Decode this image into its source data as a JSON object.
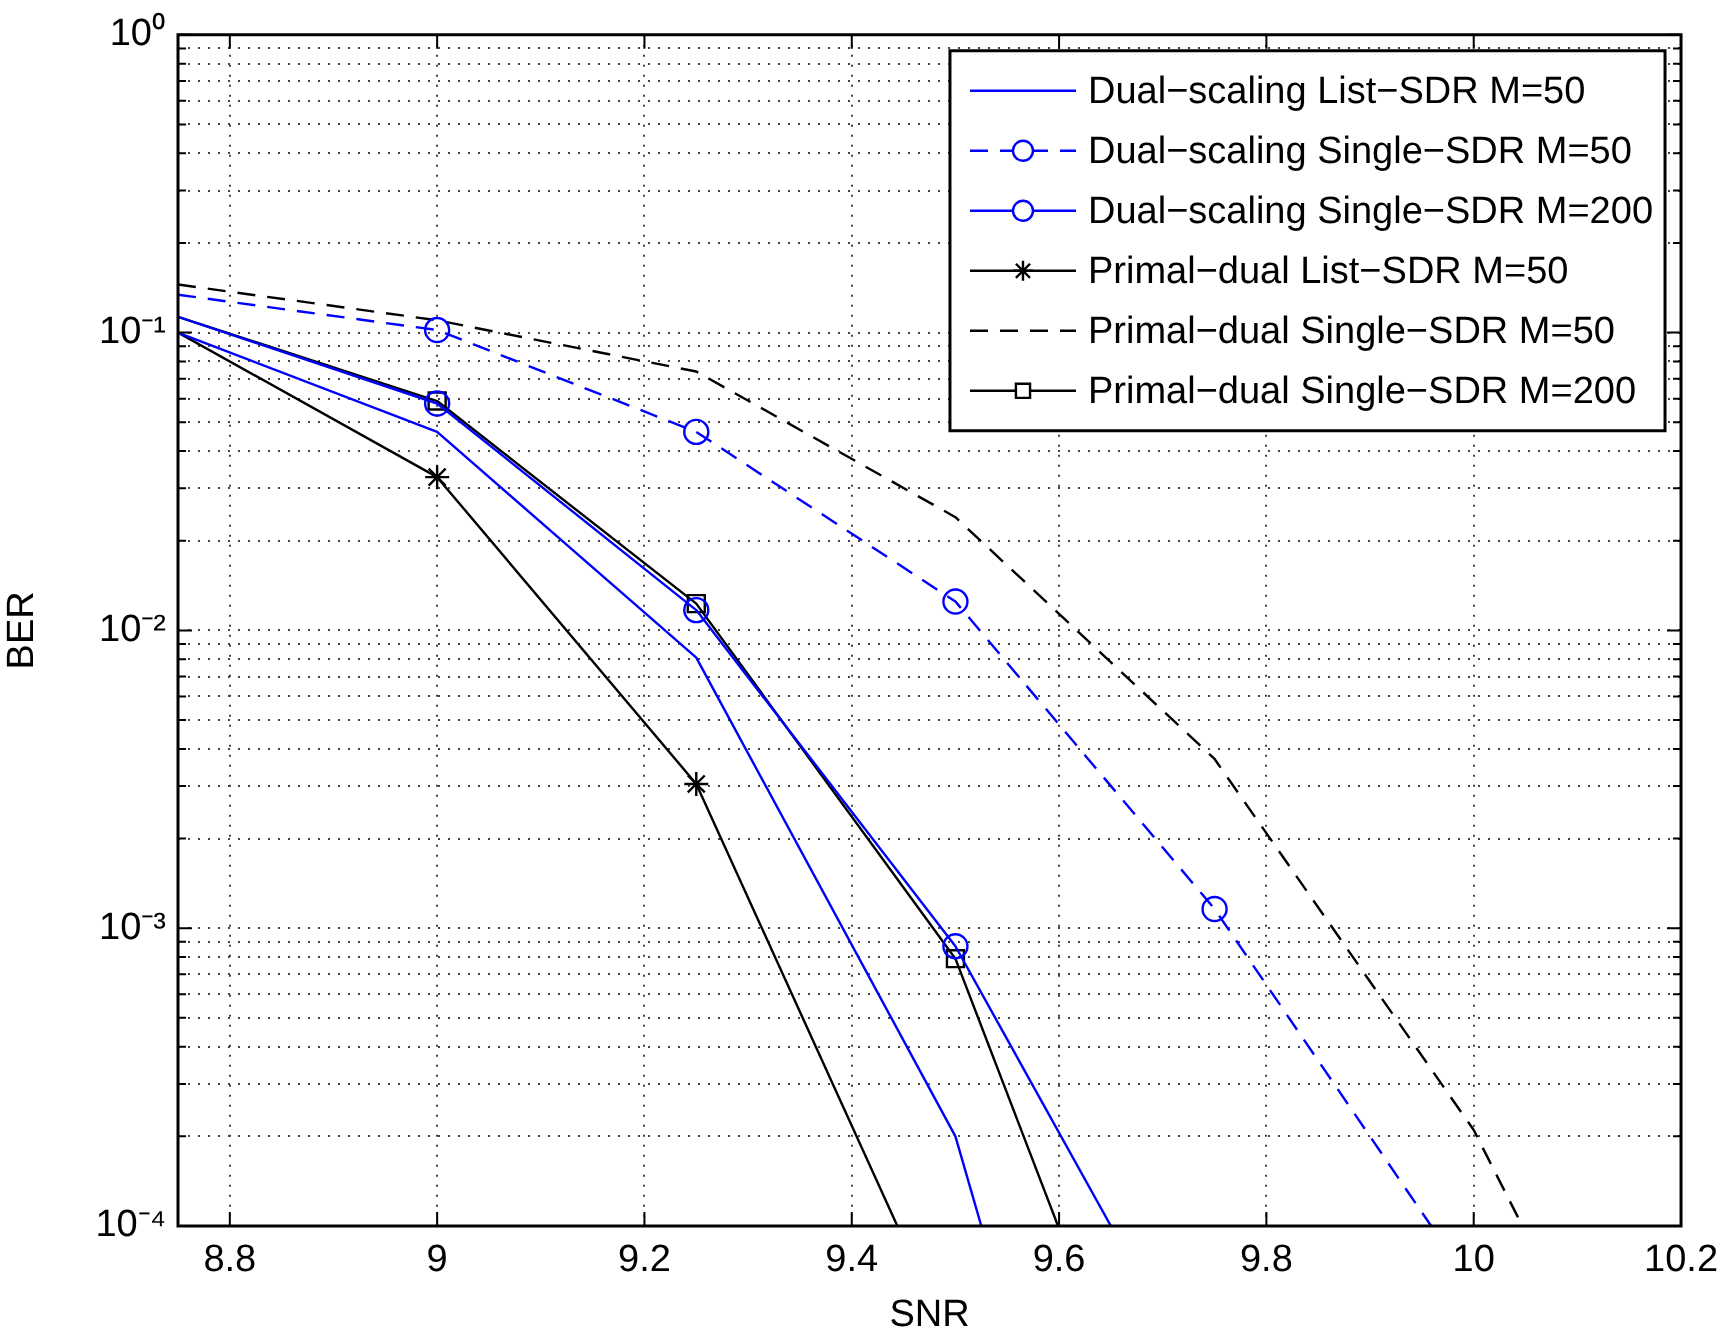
{
  "chart_data": {
    "type": "line",
    "xlabel": "SNR",
    "ylabel": "BER",
    "log": "y",
    "grid": true,
    "legend": "top right",
    "xlim": [
      8.75,
      10.2
    ],
    "xticks": [
      8.8,
      9,
      9.2,
      9.4,
      9.6,
      9.8,
      10,
      10.2
    ],
    "ylim": [
      0.0001,
      1
    ],
    "yticks": [
      {
        "value": 0.0001,
        "label": "10⁻⁴"
      },
      {
        "value": 0.0002,
        "label": null
      },
      {
        "value": 0.0003,
        "label": null
      },
      {
        "value": 0.0004,
        "label": null
      },
      {
        "value": 0.0005,
        "label": null
      },
      {
        "value": 0.0006,
        "label": null
      },
      {
        "value": 0.0007,
        "label": null
      },
      {
        "value": 0.0008,
        "label": null
      },
      {
        "value": 0.0009,
        "label": null
      },
      {
        "value": 0.001,
        "label": "10⁻³"
      },
      {
        "value": 0.002,
        "label": null
      },
      {
        "value": 0.003,
        "label": null
      },
      {
        "value": 0.004,
        "label": null
      },
      {
        "value": 0.005,
        "label": null
      },
      {
        "value": 0.006,
        "label": null
      },
      {
        "value": 0.007,
        "label": null
      },
      {
        "value": 0.008,
        "label": null
      },
      {
        "value": 0.009,
        "label": null
      },
      {
        "value": 0.01,
        "label": "10⁻²"
      },
      {
        "value": 0.02,
        "label": null
      },
      {
        "value": 0.03,
        "label": null
      },
      {
        "value": 0.04,
        "label": null
      },
      {
        "value": 0.05,
        "label": null
      },
      {
        "value": 0.06,
        "label": null
      },
      {
        "value": 0.07,
        "label": null
      },
      {
        "value": 0.08,
        "label": null
      },
      {
        "value": 0.09,
        "label": null
      },
      {
        "value": 0.1,
        "label": "10⁻¹"
      },
      {
        "value": 0.2,
        "label": null
      },
      {
        "value": 0.3,
        "label": null
      },
      {
        "value": 0.4,
        "label": null
      },
      {
        "value": 0.5,
        "label": null
      },
      {
        "value": 0.6,
        "label": null
      },
      {
        "value": 0.7,
        "label": null
      },
      {
        "value": 0.8,
        "label": null
      },
      {
        "value": 0.9,
        "label": null
      },
      {
        "value": 1,
        "label": "10⁰"
      }
    ],
    "series": [
      {
        "name": "Dual−scaling List−SDR M=50",
        "color": "#0000ff",
        "marker": "none",
        "line_style": "solid",
        "x": [
          8.75,
          9,
          9.25,
          9.5,
          9.525
        ],
        "values": [
          0.1,
          0.0464,
          0.0081,
          0.0002,
          0.0001
        ]
      },
      {
        "name": "Dual−scaling Single−SDR M=50",
        "color": "#0000ff",
        "marker": "circle",
        "line_style": "dashed",
        "x": [
          8.75,
          9,
          9.25,
          9.5,
          9.75,
          9.959
        ],
        "values": [
          0.134,
          0.102,
          0.0464,
          0.0125,
          0.00116,
          0.0001
        ]
      },
      {
        "name": "Dual−scaling Single−SDR M=200",
        "color": "#0000ff",
        "marker": "circle",
        "line_style": "solid",
        "x": [
          8.75,
          9,
          9.25,
          9.5,
          9.65
        ],
        "values": [
          0.113,
          0.0578,
          0.0117,
          0.00087,
          0.0001
        ]
      },
      {
        "name": "Primal−dual List−SDR M=50",
        "color": "#000000",
        "marker": "cross",
        "line_style": "solid",
        "x": [
          8.75,
          9,
          9.25,
          9.444
        ],
        "values": [
          0.1,
          0.0327,
          0.00305,
          0.0001
        ]
      },
      {
        "name": "Primal−dual Single−SDR M=50",
        "color": "#000000",
        "marker": "none",
        "line_style": "dashed",
        "x": [
          8.75,
          9,
          9.25,
          9.5,
          9.75,
          10,
          10.047
        ],
        "values": [
          0.145,
          0.11,
          0.074,
          0.024,
          0.0037,
          0.00021,
          0.0001
        ]
      },
      {
        "name": "Primal−dual Single−SDR M=200",
        "color": "#000000",
        "marker": "square",
        "line_style": "solid",
        "x": [
          8.75,
          9,
          9.25,
          9.5,
          9.599
        ],
        "values": [
          0.113,
          0.0589,
          0.0123,
          0.00079,
          0.0001
        ]
      }
    ]
  }
}
